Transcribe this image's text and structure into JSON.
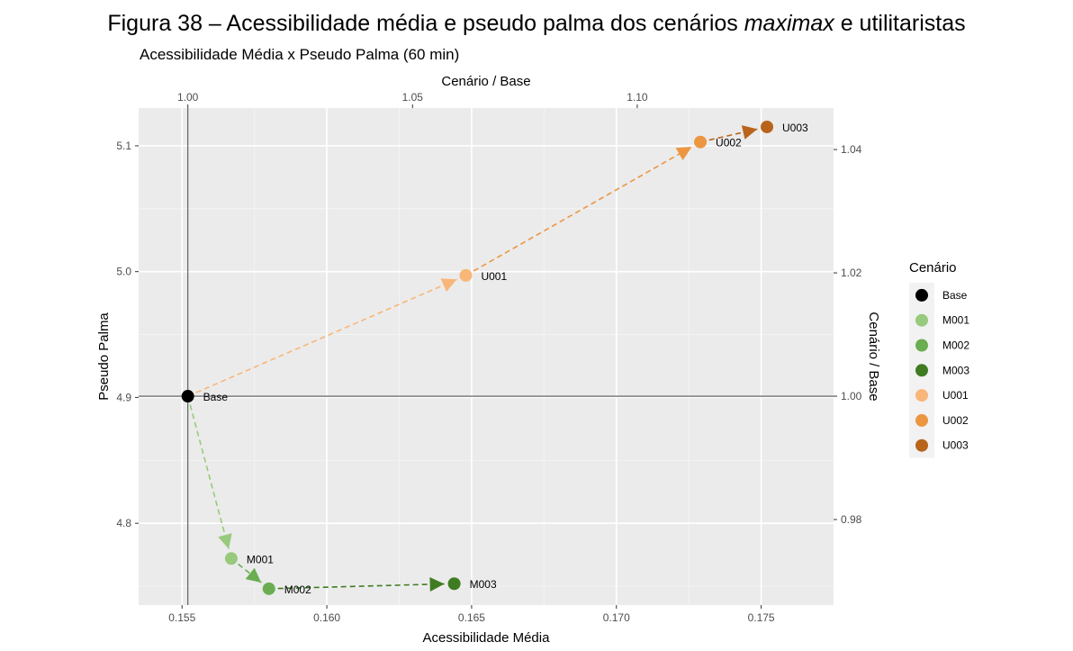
{
  "caption": {
    "prefix": "Figura 38 – Acessibilidade média e pseudo palma dos cenários ",
    "italic1": "maximax",
    "middle": " e ",
    "rest": "utilitaristas"
  },
  "chart_data": {
    "type": "scatter",
    "title": "Acessibilidade Média x Pseudo Palma (60 min)",
    "xlabel": "Acessibilidade Média",
    "ylabel": "Pseudo Palma",
    "x2label": "Cenário / Base",
    "y2label": "Cenário / Base",
    "xlim": [
      0.1535,
      0.1775
    ],
    "ylim": [
      4.735,
      5.13
    ],
    "x_ticks": [
      0.155,
      0.16,
      0.165,
      0.17,
      0.175
    ],
    "x_tick_labels": [
      "0.155",
      "0.160",
      "0.165",
      "0.170",
      "0.175"
    ],
    "y_ticks": [
      4.8,
      4.9,
      5.0,
      5.1
    ],
    "y_tick_labels": [
      "4.8",
      "4.9",
      "5.0",
      "5.1"
    ],
    "x2_ticks": [
      1.0,
      1.05,
      1.1
    ],
    "x2_tick_labels": [
      "1.00",
      "1.05",
      "1.10"
    ],
    "y2_ticks": [
      0.98,
      1.0,
      1.02,
      1.04
    ],
    "y2_tick_labels": [
      "0.98",
      "1.00",
      "1.02",
      "1.04"
    ],
    "base": {
      "x": 0.1552,
      "y": 4.901
    },
    "grid": true,
    "legend_position": "right",
    "legend_title": "Cenário",
    "points": [
      {
        "name": "Base",
        "x": 0.1552,
        "y": 4.901,
        "color": "#000000"
      },
      {
        "name": "M001",
        "x": 0.1567,
        "y": 4.772,
        "color": "#98CA7D"
      },
      {
        "name": "M002",
        "x": 0.158,
        "y": 4.748,
        "color": "#6AAE51"
      },
      {
        "name": "M003",
        "x": 0.1644,
        "y": 4.752,
        "color": "#3F7C21"
      },
      {
        "name": "U001",
        "x": 0.1648,
        "y": 4.997,
        "color": "#F9B679"
      },
      {
        "name": "U002",
        "x": 0.1729,
        "y": 5.103,
        "color": "#EC9642"
      },
      {
        "name": "U003",
        "x": 0.1752,
        "y": 5.115,
        "color": "#B8641B"
      }
    ],
    "arrows": [
      {
        "from": "Base",
        "to": "M001",
        "color": "#98CA7D"
      },
      {
        "from": "M001",
        "to": "M002",
        "color": "#6AAE51"
      },
      {
        "from": "M002",
        "to": "M003",
        "color": "#3F7C21"
      },
      {
        "from": "Base",
        "to": "U001",
        "color": "#F9B679"
      },
      {
        "from": "U001",
        "to": "U002",
        "color": "#EC9642"
      },
      {
        "from": "U002",
        "to": "U003",
        "color": "#B8641B"
      }
    ]
  }
}
